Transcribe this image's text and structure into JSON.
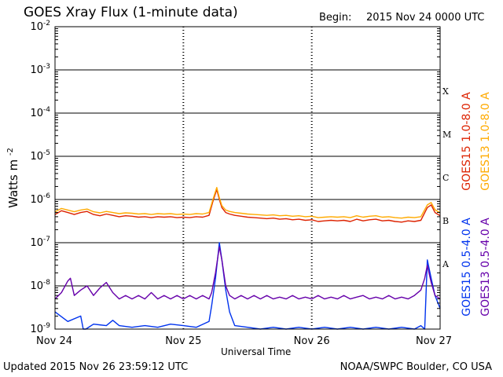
{
  "header": {
    "title": "GOES Xray Flux (1-minute data)",
    "begin_label": "Begin:",
    "begin_value": "2015 Nov 24 0000 UTC"
  },
  "footer": {
    "updated": "Updated 2015 Nov 26 23:59:12 UTC",
    "credit": "NOAA/SWPC Boulder, CO USA"
  },
  "colors": {
    "goes15_long": "#dd2200",
    "goes13_long": "#ffaa00",
    "goes15_short": "#0033ee",
    "goes13_short": "#6600aa"
  },
  "chart_data": {
    "type": "line",
    "title": "GOES Xray Flux (1-minute data)",
    "xlabel": "Universal Time",
    "ylabel": "Watts m",
    "ylabel_sup": "-2",
    "y_scale": "log",
    "ylim": [
      1e-09,
      0.01
    ],
    "xlim": [
      "2015-11-24",
      "2015-11-27"
    ],
    "grid": true,
    "x_ticks": [
      {
        "t": 0,
        "label": "Nov 24"
      },
      {
        "t": 1,
        "label": "Nov 25"
      },
      {
        "t": 2,
        "label": "Nov 26"
      },
      {
        "t": 3,
        "label": "Nov 27"
      }
    ],
    "y_ticks": [
      {
        "base": "10",
        "exp": "-9",
        "value": 1e-09
      },
      {
        "base": "10",
        "exp": "-8",
        "value": 1e-08
      },
      {
        "base": "10",
        "exp": "-7",
        "value": 1e-07
      },
      {
        "base": "10",
        "exp": "-6",
        "value": 1e-06
      },
      {
        "base": "10",
        "exp": "-5",
        "value": 1e-05
      },
      {
        "base": "10",
        "exp": "-4",
        "value": 0.0001
      },
      {
        "base": "10",
        "exp": "-3",
        "value": 0.001
      },
      {
        "base": "10",
        "exp": "-2",
        "value": 0.01
      }
    ],
    "flare_classes": [
      {
        "label": "A",
        "value": 3.2e-08
      },
      {
        "label": "B",
        "value": 3.2e-07
      },
      {
        "label": "C",
        "value": 3.2e-06
      },
      {
        "label": "M",
        "value": 3.2e-05
      },
      {
        "label": "X",
        "value": 0.00032
      }
    ],
    "series": [
      {
        "name": "GOES15 1.0-8.0 A",
        "color": "#dd2200",
        "x": [
          0,
          0.05,
          0.1,
          0.15,
          0.2,
          0.25,
          0.3,
          0.35,
          0.4,
          0.45,
          0.5,
          0.55,
          0.6,
          0.65,
          0.7,
          0.75,
          0.8,
          0.85,
          0.9,
          0.95,
          1.0,
          1.05,
          1.1,
          1.15,
          1.2,
          1.23,
          1.26,
          1.28,
          1.3,
          1.33,
          1.36,
          1.4,
          1.45,
          1.5,
          1.55,
          1.6,
          1.65,
          1.7,
          1.75,
          1.8,
          1.85,
          1.9,
          1.95,
          2.0,
          2.05,
          2.1,
          2.15,
          2.2,
          2.25,
          2.3,
          2.35,
          2.4,
          2.45,
          2.5,
          2.55,
          2.6,
          2.65,
          2.7,
          2.75,
          2.8,
          2.85,
          2.9,
          2.93,
          2.96,
          3.0
        ],
        "y": [
          4.5e-07,
          5.5e-07,
          5e-07,
          4.5e-07,
          5e-07,
          5.3e-07,
          4.5e-07,
          4.2e-07,
          4.6e-07,
          4.3e-07,
          4e-07,
          4.2e-07,
          4.1e-07,
          3.9e-07,
          4e-07,
          3.8e-07,
          4e-07,
          3.9e-07,
          4e-07,
          3.8e-07,
          3.9e-07,
          3.8e-07,
          4e-07,
          3.9e-07,
          4.3e-07,
          9e-07,
          1.7e-06,
          1e-06,
          6.5e-07,
          5e-07,
          4.6e-07,
          4.3e-07,
          4.1e-07,
          3.9e-07,
          3.8e-07,
          3.7e-07,
          3.6e-07,
          3.7e-07,
          3.5e-07,
          3.6e-07,
          3.4e-07,
          3.5e-07,
          3.3e-07,
          3.4e-07,
          3.1e-07,
          3.2e-07,
          3.3e-07,
          3.2e-07,
          3.3e-07,
          3.1e-07,
          3.5e-07,
          3.2e-07,
          3.4e-07,
          3.5e-07,
          3.2e-07,
          3.3e-07,
          3.1e-07,
          3e-07,
          3.2e-07,
          3.1e-07,
          3.3e-07,
          6.5e-07,
          7.5e-07,
          5e-07,
          4.2e-07
        ]
      },
      {
        "name": "GOES13 1.0-8.0 A",
        "color": "#ffaa00",
        "x": [
          0,
          0.05,
          0.1,
          0.15,
          0.2,
          0.25,
          0.3,
          0.35,
          0.4,
          0.45,
          0.5,
          0.55,
          0.6,
          0.65,
          0.7,
          0.75,
          0.8,
          0.85,
          0.9,
          0.95,
          1.0,
          1.05,
          1.1,
          1.15,
          1.2,
          1.23,
          1.26,
          1.28,
          1.3,
          1.33,
          1.36,
          1.4,
          1.45,
          1.5,
          1.55,
          1.6,
          1.65,
          1.7,
          1.75,
          1.8,
          1.85,
          1.9,
          1.95,
          2.0,
          2.05,
          2.1,
          2.15,
          2.2,
          2.25,
          2.3,
          2.35,
          2.4,
          2.45,
          2.5,
          2.55,
          2.6,
          2.65,
          2.7,
          2.75,
          2.8,
          2.85,
          2.9,
          2.93,
          2.96,
          3.0
        ],
        "y": [
          5.2e-07,
          6.2e-07,
          5.7e-07,
          5.2e-07,
          5.7e-07,
          6e-07,
          5.2e-07,
          4.9e-07,
          5.3e-07,
          5e-07,
          4.7e-07,
          4.9e-07,
          4.8e-07,
          4.6e-07,
          4.7e-07,
          4.5e-07,
          4.7e-07,
          4.6e-07,
          4.7e-07,
          4.5e-07,
          4.6e-07,
          4.5e-07,
          4.7e-07,
          4.6e-07,
          5e-07,
          1e-06,
          1.9e-06,
          1.1e-06,
          7.2e-07,
          5.7e-07,
          5.3e-07,
          5e-07,
          4.8e-07,
          4.6e-07,
          4.5e-07,
          4.4e-07,
          4.3e-07,
          4.4e-07,
          4.2e-07,
          4.3e-07,
          4.1e-07,
          4.2e-07,
          4e-07,
          4.1e-07,
          3.8e-07,
          3.9e-07,
          4e-07,
          3.9e-07,
          4e-07,
          3.8e-07,
          4.2e-07,
          3.9e-07,
          4.1e-07,
          4.2e-07,
          3.9e-07,
          4e-07,
          3.8e-07,
          3.7e-07,
          3.9e-07,
          3.8e-07,
          4e-07,
          7.5e-07,
          8.5e-07,
          5.8e-07,
          4.9e-07
        ]
      },
      {
        "name": "GOES15 0.5-4.0 A",
        "color": "#0033ee",
        "x": [
          0,
          0.1,
          0.2,
          0.22,
          0.24,
          0.3,
          0.4,
          0.45,
          0.5,
          0.6,
          0.7,
          0.8,
          0.9,
          1.0,
          1.1,
          1.2,
          1.22,
          1.25,
          1.28,
          1.3,
          1.33,
          1.36,
          1.4,
          1.5,
          1.6,
          1.7,
          1.8,
          1.9,
          2.0,
          2.1,
          2.2,
          2.3,
          2.4,
          2.5,
          2.6,
          2.7,
          2.8,
          2.85,
          2.88,
          2.9,
          2.93,
          2.96,
          3.0
        ],
        "y": [
          2.5e-09,
          1.5e-09,
          2e-09,
          1e-09,
          1e-09,
          1.3e-09,
          1.2e-09,
          1.6e-09,
          1.2e-09,
          1.1e-09,
          1.2e-09,
          1.1e-09,
          1.3e-09,
          1.2e-09,
          1.1e-09,
          1.5e-09,
          3.5e-09,
          1.5e-08,
          1e-07,
          4e-08,
          8e-09,
          2.5e-09,
          1.2e-09,
          1.1e-09,
          1e-09,
          1.1e-09,
          1e-09,
          1.1e-09,
          1e-09,
          1.1e-09,
          1e-09,
          1.1e-09,
          1e-09,
          1.1e-09,
          1e-09,
          1.1e-09,
          1e-09,
          1.2e-09,
          1e-09,
          4e-08,
          1.5e-08,
          6e-09,
          3e-09
        ]
      },
      {
        "name": "GOES13 0.5-4.0 A",
        "color": "#6600aa",
        "x": [
          0,
          0.05,
          0.1,
          0.12,
          0.15,
          0.2,
          0.25,
          0.3,
          0.35,
          0.4,
          0.45,
          0.5,
          0.55,
          0.6,
          0.65,
          0.7,
          0.75,
          0.8,
          0.85,
          0.9,
          0.95,
          1.0,
          1.05,
          1.1,
          1.15,
          1.2,
          1.22,
          1.25,
          1.28,
          1.3,
          1.33,
          1.36,
          1.4,
          1.45,
          1.5,
          1.55,
          1.6,
          1.65,
          1.7,
          1.75,
          1.8,
          1.85,
          1.9,
          1.95,
          2.0,
          2.05,
          2.1,
          2.15,
          2.2,
          2.25,
          2.3,
          2.35,
          2.4,
          2.45,
          2.5,
          2.55,
          2.6,
          2.65,
          2.7,
          2.75,
          2.8,
          2.85,
          2.88,
          2.9,
          2.93,
          2.96,
          3.0
        ],
        "y": [
          5e-09,
          7e-09,
          1.3e-08,
          1.5e-08,
          6e-09,
          8e-09,
          1e-08,
          6e-09,
          9e-09,
          1.2e-08,
          7e-09,
          5e-09,
          6e-09,
          5e-09,
          6e-09,
          5e-09,
          7e-09,
          5e-09,
          6e-09,
          5e-09,
          6e-09,
          5e-09,
          6e-09,
          5e-09,
          6e-09,
          5e-09,
          7e-09,
          2e-08,
          8e-08,
          4e-08,
          1e-08,
          6e-09,
          5e-09,
          6e-09,
          5e-09,
          6e-09,
          5e-09,
          6e-09,
          5e-09,
          5.5e-09,
          5e-09,
          6e-09,
          5e-09,
          5.5e-09,
          5e-09,
          6e-09,
          5e-09,
          5.5e-09,
          5e-09,
          6e-09,
          5e-09,
          5.5e-09,
          6e-09,
          5e-09,
          5.5e-09,
          5e-09,
          6e-09,
          5e-09,
          5.5e-09,
          5e-09,
          6e-09,
          8e-09,
          1.5e-08,
          3e-08,
          1.2e-08,
          6e-09,
          5e-09
        ]
      }
    ]
  }
}
